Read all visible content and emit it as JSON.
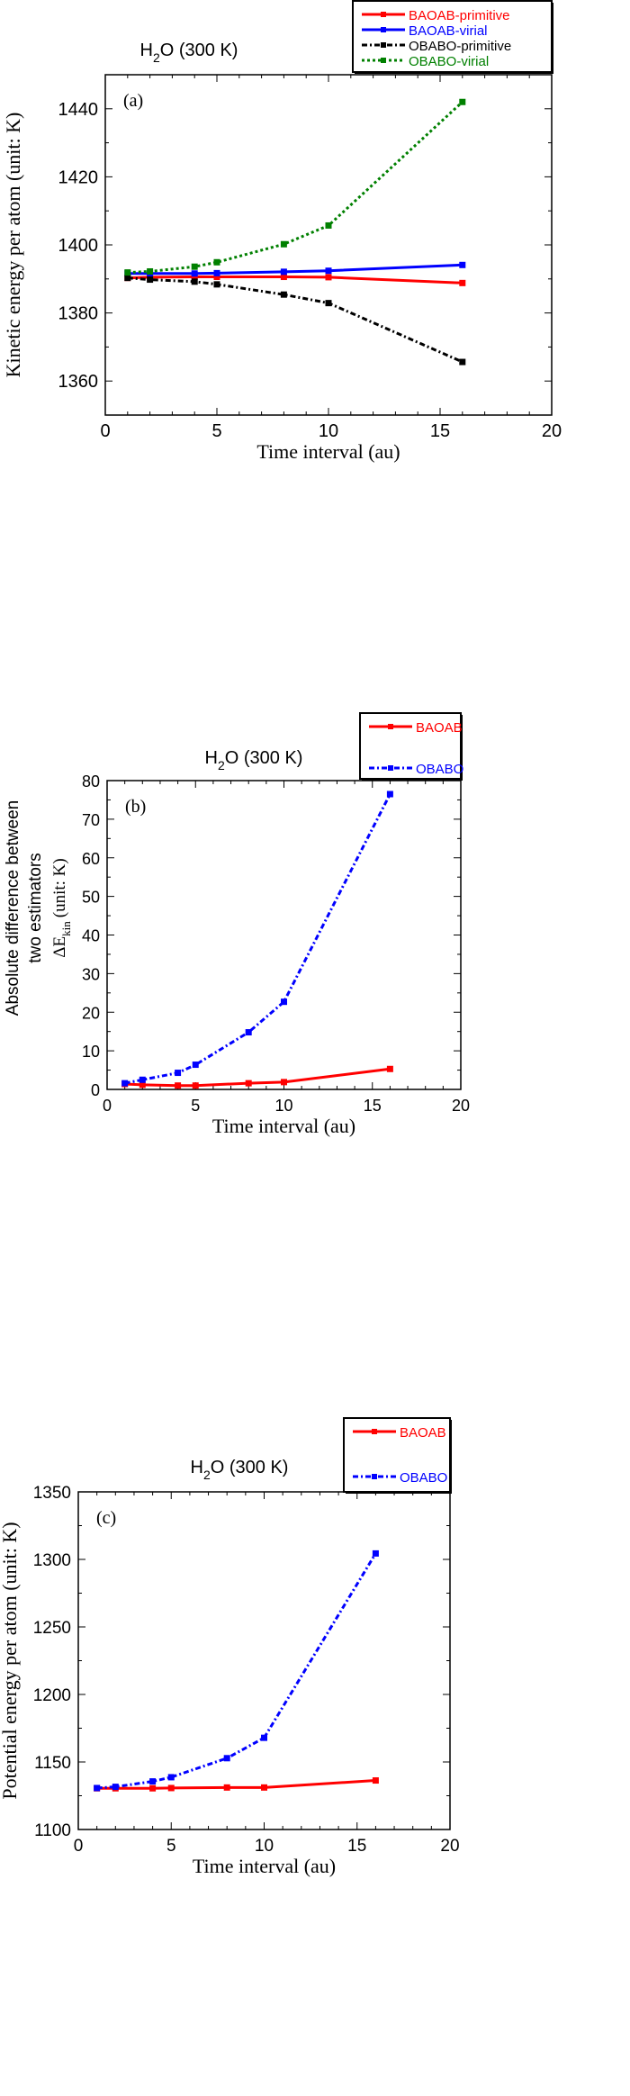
{
  "chart_data": [
    {
      "type": "line",
      "panel_label": "(a)",
      "title": "H2O (300 K)",
      "title_main": "H",
      "title_sub": "2",
      "title_rest": "O (300 K)",
      "xlabel": "Time interval (au)",
      "ylabel": "Kinetic energy per atom (unit: K)",
      "xlim": [
        0,
        20
      ],
      "ylim": [
        1350,
        1450
      ],
      "xticks": [
        "0",
        "5",
        "10",
        "15",
        "20"
      ],
      "yticks": [
        "1360",
        "1380",
        "1400",
        "1420",
        "1440"
      ],
      "ytick_values": [
        1360,
        1380,
        1400,
        1420,
        1440
      ],
      "legend": "top-right",
      "x": [
        1,
        2,
        4,
        5,
        8,
        10,
        16
      ],
      "series": [
        {
          "name": "BAOAB-primitive",
          "color": "#ff0000",
          "style": "solid",
          "values": [
            1390.3,
            1390.5,
            1390.6,
            1390.6,
            1390.6,
            1390.5,
            1388.8
          ]
        },
        {
          "name": "BAOAB-virial",
          "color": "#0000ff",
          "style": "solid",
          "values": [
            1391.6,
            1391.6,
            1391.6,
            1391.7,
            1392.1,
            1392.4,
            1394.1
          ]
        },
        {
          "name": "OBABO-primitive",
          "color": "#000000",
          "style": "dashdot",
          "values": [
            1390.3,
            1389.8,
            1389.2,
            1388.4,
            1385.4,
            1382.9,
            1365.6
          ]
        },
        {
          "name": "OBABO-virial",
          "color": "#008000",
          "style": "dotted",
          "values": [
            1391.9,
            1392.2,
            1393.6,
            1394.9,
            1400.2,
            1405.7,
            1442.0
          ]
        }
      ]
    },
    {
      "type": "line",
      "panel_label": "(b)",
      "title": "H2O (300 K)",
      "title_main": "H",
      "title_sub": "2",
      "title_rest": "O (300 K)",
      "xlabel": "Time interval (au)",
      "ylabel_lines": [
        "Absolute difference between",
        "two estimators"
      ],
      "ylabel_symbol": "ΔE",
      "ylabel_symbol_sub": "kin",
      "ylabel_unit": "(unit: K)",
      "xlim": [
        0,
        20
      ],
      "ylim": [
        0,
        80
      ],
      "xticks": [
        "0",
        "5",
        "10",
        "15",
        "20"
      ],
      "yticks": [
        "0",
        "10",
        "20",
        "30",
        "40",
        "50",
        "60",
        "70",
        "80"
      ],
      "ytick_values": [
        0,
        10,
        20,
        30,
        40,
        50,
        60,
        70,
        80
      ],
      "legend": "top-right",
      "x": [
        1,
        2,
        4,
        5,
        8,
        10,
        16
      ],
      "series": [
        {
          "name": "BAOAB",
          "color": "#ff0000",
          "style": "solid",
          "values": [
            1.4,
            1.2,
            1.0,
            1.0,
            1.6,
            1.9,
            5.3
          ]
        },
        {
          "name": "OBABO",
          "color": "#0000ff",
          "style": "dashdot",
          "values": [
            1.6,
            2.5,
            4.3,
            6.4,
            14.8,
            22.7,
            76.5
          ]
        }
      ]
    },
    {
      "type": "line",
      "panel_label": "(c)",
      "title": "H2O (300 K)",
      "title_main": "H",
      "title_sub": "2",
      "title_rest": "O (300 K)",
      "xlabel": "Time interval (au)",
      "ylabel": "Potential energy per atom (unit: K)",
      "xlim": [
        0,
        20
      ],
      "ylim": [
        1100,
        1350
      ],
      "xticks": [
        "0",
        "5",
        "10",
        "15",
        "20"
      ],
      "yticks": [
        "1100",
        "1150",
        "1200",
        "1250",
        "1300",
        "1350"
      ],
      "ytick_values": [
        1100,
        1150,
        1200,
        1250,
        1300,
        1350
      ],
      "legend": "top-right",
      "x": [
        1,
        2,
        4,
        5,
        8,
        10,
        16
      ],
      "series": [
        {
          "name": "BAOAB",
          "color": "#ff0000",
          "style": "solid",
          "values": [
            1130.5,
            1130.5,
            1130.5,
            1130.7,
            1131.1,
            1131.1,
            1136.3
          ]
        },
        {
          "name": "OBABO",
          "color": "#0000ff",
          "style": "dashdot",
          "values": [
            1130.7,
            1131.6,
            1135.6,
            1138.7,
            1152.8,
            1167.9,
            1304.4
          ]
        }
      ]
    }
  ]
}
